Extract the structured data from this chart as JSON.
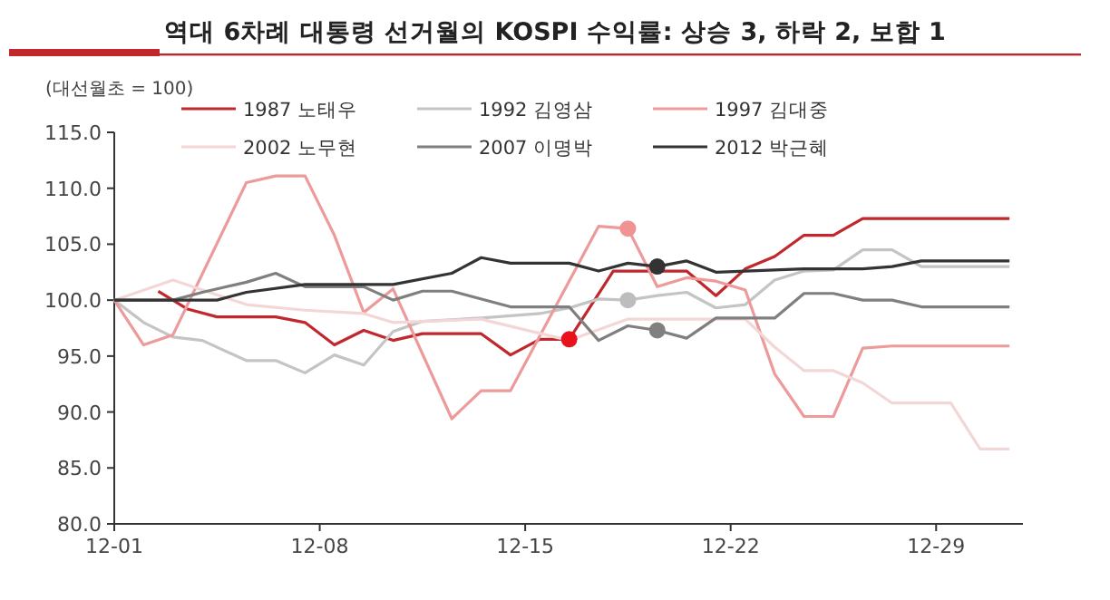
{
  "chart_data": {
    "type": "line",
    "title": "역대 6차례 대통령 선거월의 KOSPI 수익률: 상승 3, 하락 2, 보합 1",
    "ylabel": "(대선월초 = 100)",
    "xlim": [
      "--12-01",
      "--12-31T23:00"
    ],
    "ylim": [
      80,
      115
    ],
    "xticks": [
      {
        "value": "--12-01",
        "label": "12-01"
      },
      {
        "value": "--12-08",
        "label": "12-08"
      },
      {
        "value": "--12-15",
        "label": "12-15"
      },
      {
        "value": "--12-22",
        "label": "12-22"
      },
      {
        "value": "--12-29",
        "label": "12-29"
      }
    ],
    "yticks": [
      {
        "value": 80,
        "label": "80.0"
      },
      {
        "value": 85,
        "label": "85.0"
      },
      {
        "value": 90,
        "label": "90.0"
      },
      {
        "value": 95,
        "label": "95.0"
      },
      {
        "value": 100,
        "label": "100.0"
      },
      {
        "value": 105,
        "label": "105.0"
      },
      {
        "value": 110,
        "label": "110.0"
      },
      {
        "value": 115,
        "label": "115.0"
      }
    ],
    "legend": "top",
    "grid": false,
    "line_style": "solid",
    "series": [
      {
        "name": "1987 노태우",
        "color": "#c0282d",
        "x": [
          "--12-02T12:00",
          "--12-03T12:00",
          "--12-04T12:00",
          "--12-06T12:00",
          "--12-07T12:00",
          "--12-08T12:00",
          "--12-09T12:00",
          "--12-10T12:00",
          "--12-11T12:00",
          "--12-13T12:00",
          "--12-14T12:00",
          "--12-15T12:00",
          "--12-16T12:00",
          "--12-18",
          "--12-20T12:00",
          "--12-21T12:00",
          "--12-22T12:00",
          "--12-23T12:00",
          "--12-24T12:00",
          "--12-25T12:00",
          "--12-26T12:00",
          "--12-31T12:00"
        ],
        "values": [
          100.8,
          99.2,
          98.5,
          98.5,
          98.0,
          96.0,
          97.3,
          96.4,
          97.0,
          97.0,
          95.1,
          96.5,
          96.5,
          102.6,
          102.6,
          100.4,
          102.8,
          103.9,
          105.8,
          105.8,
          107.3,
          107.3
        ]
      },
      {
        "name": "1992 김영삼",
        "color": "#c4c4c4",
        "x": [
          "--12-01",
          "--12-02",
          "--12-03",
          "--12-04",
          "--12-05T12:00",
          "--12-06T12:00",
          "--12-07T12:00",
          "--12-08T12:00",
          "--12-09T12:00",
          "--12-10T12:00",
          "--12-11T12:00",
          "--12-13T12:00",
          "--12-15T12:00",
          "--12-16T12:00",
          "--12-17T12:00",
          "--12-18T12:00",
          "--12-19T12:00",
          "--12-20T12:00",
          "--12-21T12:00",
          "--12-22T12:00",
          "--12-23T12:00",
          "--12-24T12:00",
          "--12-25T12:00",
          "--12-26T12:00",
          "--12-27T12:00",
          "--12-28T12:00",
          "--12-31T12:00"
        ],
        "values": [
          100,
          98,
          96.7,
          96.4,
          94.6,
          94.6,
          93.5,
          95.1,
          94.2,
          97.2,
          98.1,
          98.4,
          98.8,
          99.3,
          100.1,
          100.0,
          100.4,
          100.7,
          99.3,
          99.6,
          101.8,
          102.6,
          102.7,
          104.5,
          104.5,
          103.0,
          103.0
        ]
      },
      {
        "name": "1997 김대중",
        "color": "#ec9a9a",
        "x": [
          "--12-01",
          "--12-02",
          "--12-03",
          "--12-05T12:00",
          "--12-06T12:00",
          "--12-07T12:00",
          "--12-08T12:00",
          "--12-09T12:00",
          "--12-10T12:00",
          "--12-12T12:00",
          "--12-13T12:00",
          "--12-14T12:00",
          "--12-17T12:00",
          "--12-18T12:00",
          "--12-19T12:00",
          "--12-20T12:00",
          "--12-21T12:00",
          "--12-22T12:00",
          "--12-23T12:00",
          "--12-24T12:00",
          "--12-25T12:00",
          "--12-26T12:00",
          "--12-27T12:00",
          "--12-31T12:00"
        ],
        "values": [
          100,
          96.0,
          96.9,
          110.5,
          111.1,
          111.1,
          105.8,
          98.9,
          101.0,
          89.4,
          91.9,
          91.9,
          106.6,
          106.4,
          101.2,
          102.0,
          101.7,
          100.9,
          93.4,
          89.6,
          89.6,
          95.7,
          95.9,
          95.9
        ]
      },
      {
        "name": "2002 노무현",
        "color": "#f3d6d6",
        "x": [
          "--12-01",
          "--12-03",
          "--12-05T12:00",
          "--12-07T12:00",
          "--12-09T12:00",
          "--12-10T12:00",
          "--12-13T12:00",
          "--12-16T12:00",
          "--12-18T12:00",
          "--12-20T12:00",
          "--12-22T12:00",
          "--12-23T12:00",
          "--12-24T12:00",
          "--12-25T12:00",
          "--12-26T12:00",
          "--12-27T12:00",
          "--12-29T12:00",
          "--12-30T12:00",
          "--12-31T12:00"
        ],
        "values": [
          100,
          101.8,
          99.6,
          99.1,
          98.8,
          98.0,
          98.3,
          96.4,
          98.3,
          98.3,
          98.3,
          95.8,
          93.7,
          93.7,
          92.6,
          90.8,
          90.8,
          86.7,
          86.7
        ]
      },
      {
        "name": "2007 이명박",
        "color": "#7f7f7f",
        "x": [
          "--12-01",
          "--12-03",
          "--12-04",
          "--12-05T12:00",
          "--12-06T12:00",
          "--12-07T12:00",
          "--12-09T12:00",
          "--12-10T12:00",
          "--12-11T12:00",
          "--12-12T12:00",
          "--12-14T12:00",
          "--12-16T12:00",
          "--12-17T12:00",
          "--12-18T12:00",
          "--12-19T12:00",
          "--12-20T12:00",
          "--12-21T12:00",
          "--12-23T12:00",
          "--12-24T12:00",
          "--12-25T12:00",
          "--12-26T12:00",
          "--12-27T12:00",
          "--12-28T12:00",
          "--12-31T12:00"
        ],
        "values": [
          100,
          100,
          100.7,
          101.6,
          102.4,
          101.2,
          101.2,
          100.0,
          100.8,
          100.8,
          99.4,
          99.4,
          96.4,
          97.7,
          97.3,
          96.6,
          98.4,
          98.4,
          100.6,
          100.6,
          100.0,
          100.0,
          99.4,
          99.4
        ]
      },
      {
        "name": "2012 박근혜",
        "color": "#333333",
        "x": [
          "--12-01",
          "--12-04T12:00",
          "--12-05T12:00",
          "--12-07T12:00",
          "--12-09T12:00",
          "--12-10T12:00",
          "--12-12T12:00",
          "--12-13T12:00",
          "--12-14T12:00",
          "--12-16T12:00",
          "--12-17T12:00",
          "--12-18T12:00",
          "--12-19T12:00",
          "--12-20T12:00",
          "--12-21T12:00",
          "--12-24T12:00",
          "--12-26T12:00",
          "--12-27T12:00",
          "--12-28T12:00",
          "--12-31T12:00"
        ],
        "values": [
          100,
          100,
          100.7,
          101.4,
          101.4,
          101.4,
          102.4,
          103.8,
          103.3,
          103.3,
          102.6,
          103.3,
          103.0,
          103.5,
          102.5,
          102.8,
          102.8,
          103.0,
          103.5,
          103.5
        ]
      },
      {
        "type": "scatter",
        "marker": "circle",
        "color": "#e8121a",
        "x": [
          "--12-16T12:00"
        ],
        "values": [
          96.5
        ]
      },
      {
        "type": "scatter",
        "marker": "circle",
        "color": "#bdbdbd",
        "x": [
          "--12-18T12:00"
        ],
        "values": [
          100.0
        ]
      },
      {
        "type": "scatter",
        "marker": "circle",
        "color": "#f29393",
        "x": [
          "--12-18T12:00"
        ],
        "values": [
          106.4
        ]
      },
      {
        "type": "scatter",
        "marker": "circle",
        "color": "#808080",
        "x": [
          "--12-19T12:00"
        ],
        "values": [
          97.3
        ]
      },
      {
        "type": "scatter",
        "marker": "circle",
        "color": "#333333",
        "x": [
          "--12-19T12:00"
        ],
        "values": [
          103.0
        ]
      }
    ]
  }
}
